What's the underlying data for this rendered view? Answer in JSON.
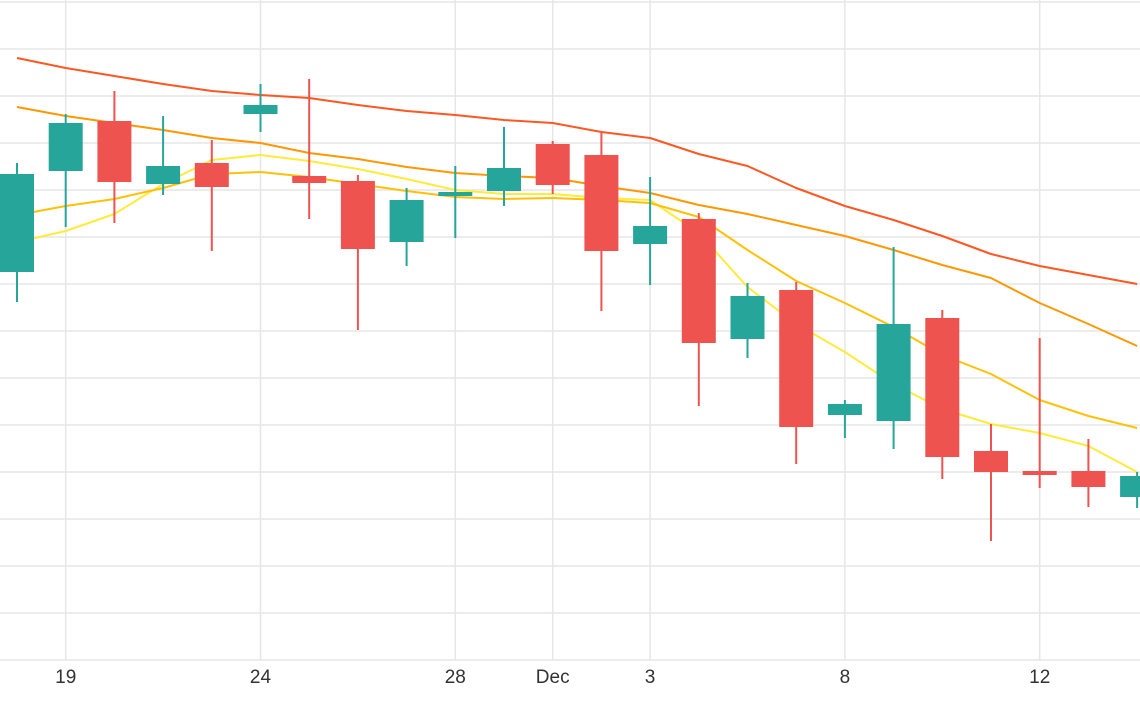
{
  "chart_data": {
    "type": "candlestick",
    "x_tick_labels": [
      "19",
      "24",
      "28",
      "Dec",
      "3",
      "8",
      "12"
    ],
    "colors": {
      "up": "#26a69a",
      "down": "#ef5350",
      "ma_5": "#ffeb3b",
      "ma_10": "#ffc107",
      "ma_20": "#ff9800",
      "ma_30": "#ff5722",
      "grid": "#e6e6e6"
    },
    "grid": true,
    "ylim": [
      0,
      660
    ],
    "candles": [
      {
        "date": "Nov 18",
        "open": 388,
        "close": 486,
        "high": 497,
        "low": 358
      },
      {
        "date": "Nov 19",
        "open": 489,
        "close": 537,
        "high": 546,
        "low": 433
      },
      {
        "date": "Nov 20",
        "open": 539,
        "close": 478,
        "high": 569,
        "low": 437
      },
      {
        "date": "Nov 21",
        "open": 476,
        "close": 494,
        "high": 544,
        "low": 465
      },
      {
        "date": "Nov 22",
        "open": 497,
        "close": 473,
        "high": 520,
        "low": 409
      },
      {
        "date": "Nov 24",
        "open": 546,
        "close": 555,
        "high": 576,
        "low": 528
      },
      {
        "date": "Nov 25",
        "open": 484,
        "close": 477,
        "high": 581,
        "low": 441
      },
      {
        "date": "Nov 26",
        "open": 479,
        "close": 411,
        "high": 485,
        "low": 330
      },
      {
        "date": "Nov 27",
        "open": 418,
        "close": 460,
        "high": 472,
        "low": 394
      },
      {
        "date": "Nov 28",
        "open": 465,
        "close": 468,
        "high": 494,
        "low": 422
      },
      {
        "date": "Nov 29",
        "open": 469,
        "close": 492,
        "high": 533,
        "low": 454
      },
      {
        "date": "Nov 30",
        "open": 516,
        "close": 475,
        "high": 519,
        "low": 466
      },
      {
        "date": "Dec 1",
        "open": 505,
        "close": 409,
        "high": 529,
        "low": 349
      },
      {
        "date": "Dec 3",
        "open": 416,
        "close": 434,
        "high": 483,
        "low": 375
      },
      {
        "date": "Dec 4",
        "open": 441,
        "close": 317,
        "high": 447,
        "low": 254
      },
      {
        "date": "Dec 5",
        "open": 321,
        "close": 364,
        "high": 377,
        "low": 302
      },
      {
        "date": "Dec 6",
        "open": 370,
        "close": 233,
        "high": 378,
        "low": 196
      },
      {
        "date": "Dec 8",
        "open": 245,
        "close": 256,
        "high": 260,
        "low": 222
      },
      {
        "date": "Dec 9",
        "open": 239,
        "close": 336,
        "high": 413,
        "low": 211
      },
      {
        "date": "Dec 10",
        "open": 342,
        "close": 203,
        "high": 350,
        "low": 181
      },
      {
        "date": "Dec 11",
        "open": 209,
        "close": 188,
        "high": 236,
        "low": 119
      },
      {
        "date": "Dec 12",
        "open": 189,
        "close": 186,
        "high": 322,
        "low": 172
      },
      {
        "date": "Dec 13",
        "open": 189,
        "close": 173,
        "high": 221,
        "low": 153
      },
      {
        "date": "Dec 14",
        "open": 163,
        "close": 184,
        "high": 188,
        "low": 152
      }
    ],
    "ma_lines": [
      {
        "key": "ma_5",
        "values": [
          418,
          429,
          446,
          476,
          500,
          505,
          499,
          491,
          481,
          470,
          466,
          466,
          462,
          460,
          427,
          373,
          336,
          308,
          276,
          251,
          236,
          227,
          214,
          188
        ]
      },
      {
        "key": "ma_10",
        "values": [
          445,
          454,
          461,
          472,
          486,
          488,
          483,
          476,
          469,
          463,
          461,
          462,
          460,
          457,
          443,
          410,
          379,
          357,
          333,
          305,
          286,
          260,
          244,
          232
        ]
      },
      {
        "key": "ma_20",
        "values": [
          553,
          544,
          537,
          530,
          522,
          517,
          507,
          501,
          493,
          487,
          484,
          482,
          474,
          467,
          455,
          446,
          435,
          424,
          410,
          395,
          382,
          357,
          336,
          314
        ]
      },
      {
        "key": "ma_30",
        "values": [
          602,
          592,
          584,
          576,
          569,
          565,
          562,
          555,
          549,
          545,
          540,
          537,
          528,
          522,
          506,
          494,
          472,
          454,
          440,
          424,
          406,
          394,
          385,
          376
        ]
      }
    ]
  }
}
